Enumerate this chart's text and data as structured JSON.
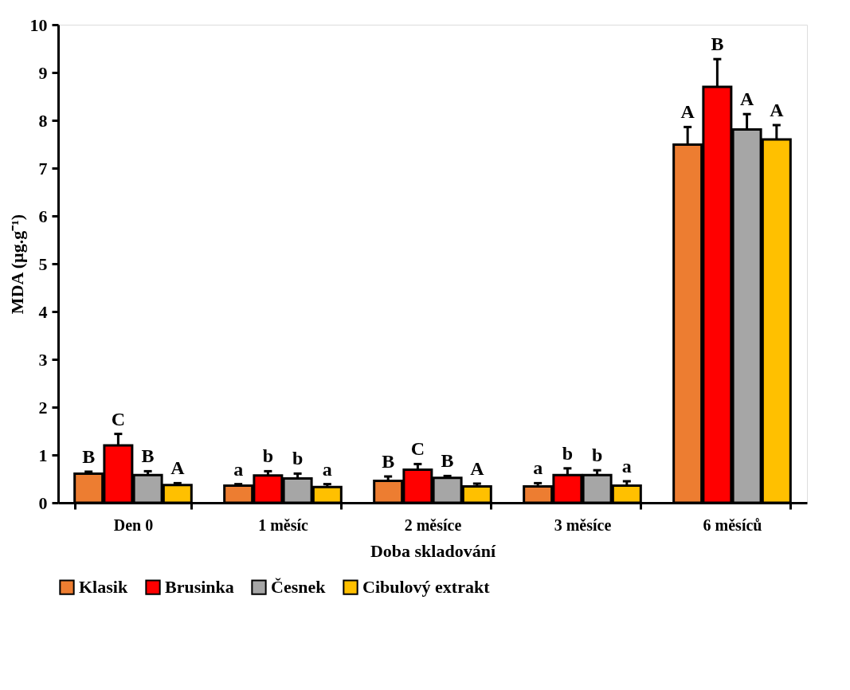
{
  "chart_data": {
    "type": "bar",
    "xlabel": "Doba skladování",
    "ylabel": "MDA (µg.g⁻¹)",
    "categories": [
      "Den 0",
      "1 měsíc",
      "2 měsíce",
      "3 měsíce",
      "6 měsíců"
    ],
    "series": [
      {
        "name": "Klasik",
        "color": "#ed7d31",
        "values": [
          0.61,
          0.36,
          0.46,
          0.34,
          7.49
        ],
        "errors": [
          0.04,
          0.03,
          0.09,
          0.07,
          0.37
        ]
      },
      {
        "name": "Brusinka",
        "color": "#ff0000",
        "values": [
          1.2,
          0.57,
          0.69,
          0.58,
          8.7
        ],
        "errors": [
          0.24,
          0.09,
          0.12,
          0.14,
          0.58
        ]
      },
      {
        "name": "Česnek",
        "color": "#a6a6a6",
        "values": [
          0.58,
          0.51,
          0.52,
          0.58,
          7.81
        ],
        "errors": [
          0.08,
          0.1,
          0.04,
          0.1,
          0.32
        ]
      },
      {
        "name": "Cibulový extrakt",
        "color": "#ffc000",
        "values": [
          0.37,
          0.33,
          0.34,
          0.36,
          7.6
        ],
        "errors": [
          0.04,
          0.06,
          0.06,
          0.09,
          0.3
        ]
      }
    ],
    "ylim": [
      0,
      10
    ],
    "yticks": [
      0,
      1,
      2,
      3,
      4,
      5,
      6,
      7,
      8,
      9,
      10
    ],
    "grid": false,
    "legend": "bottom",
    "annotations": [
      "B",
      "C",
      "B",
      "A",
      "a",
      "b",
      "b",
      "a",
      "B",
      "C",
      "B",
      "A",
      "a",
      "b",
      "b",
      "a",
      "A",
      "B",
      "A",
      "A"
    ]
  }
}
